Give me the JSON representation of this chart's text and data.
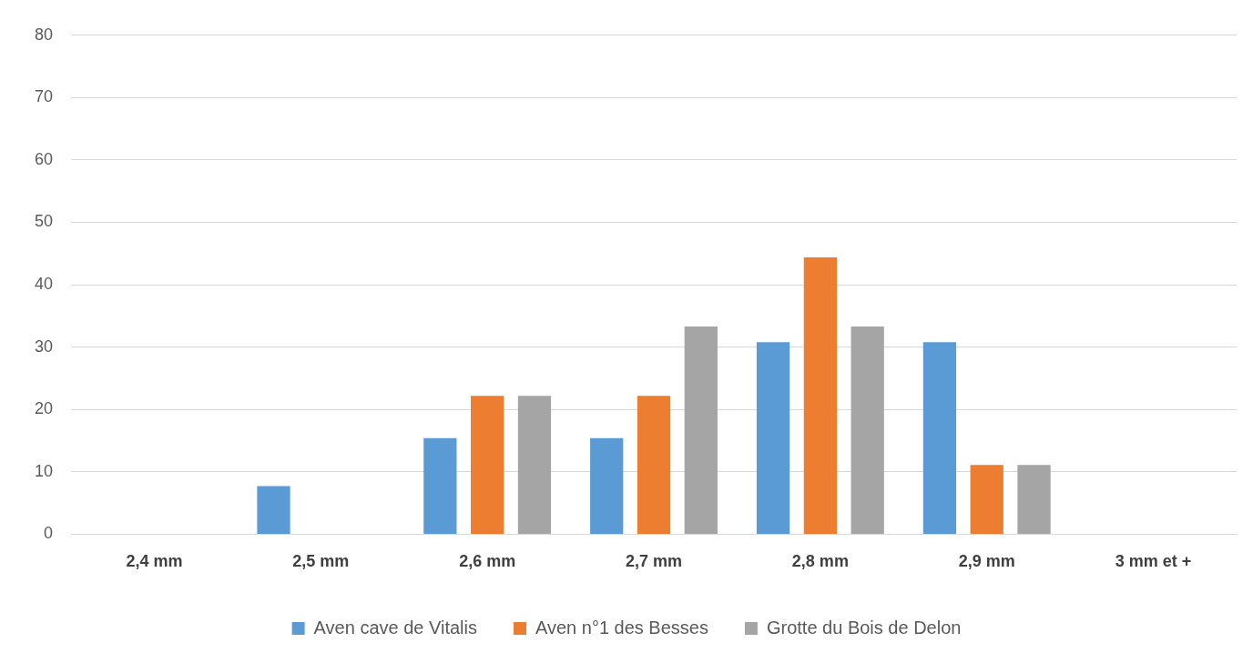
{
  "chart_data": {
    "type": "bar",
    "categories": [
      "2,4 mm",
      "2,5 mm",
      "2,6 mm",
      "2,7 mm",
      "2,8 mm",
      "2,9 mm",
      "3 mm et +"
    ],
    "series": [
      {
        "name": "Aven cave de Vitalis",
        "color": "#5b9bd5",
        "values": [
          0,
          7.7,
          15.4,
          15.4,
          30.8,
          30.8,
          0
        ]
      },
      {
        "name": "Aven n°1 des Besses",
        "color": "#ed7d31",
        "values": [
          0,
          0,
          22.2,
          22.2,
          44.4,
          11.1,
          0
        ]
      },
      {
        "name": "Grotte du Bois de Delon",
        "color": "#a5a5a5",
        "values": [
          0,
          0,
          22.2,
          33.3,
          33.3,
          11.1,
          0
        ]
      }
    ],
    "ylim": [
      0,
      80
    ],
    "yticks": [
      0,
      10,
      20,
      30,
      40,
      50,
      60,
      70,
      80
    ],
    "grid": "y",
    "legend": "bottom"
  }
}
